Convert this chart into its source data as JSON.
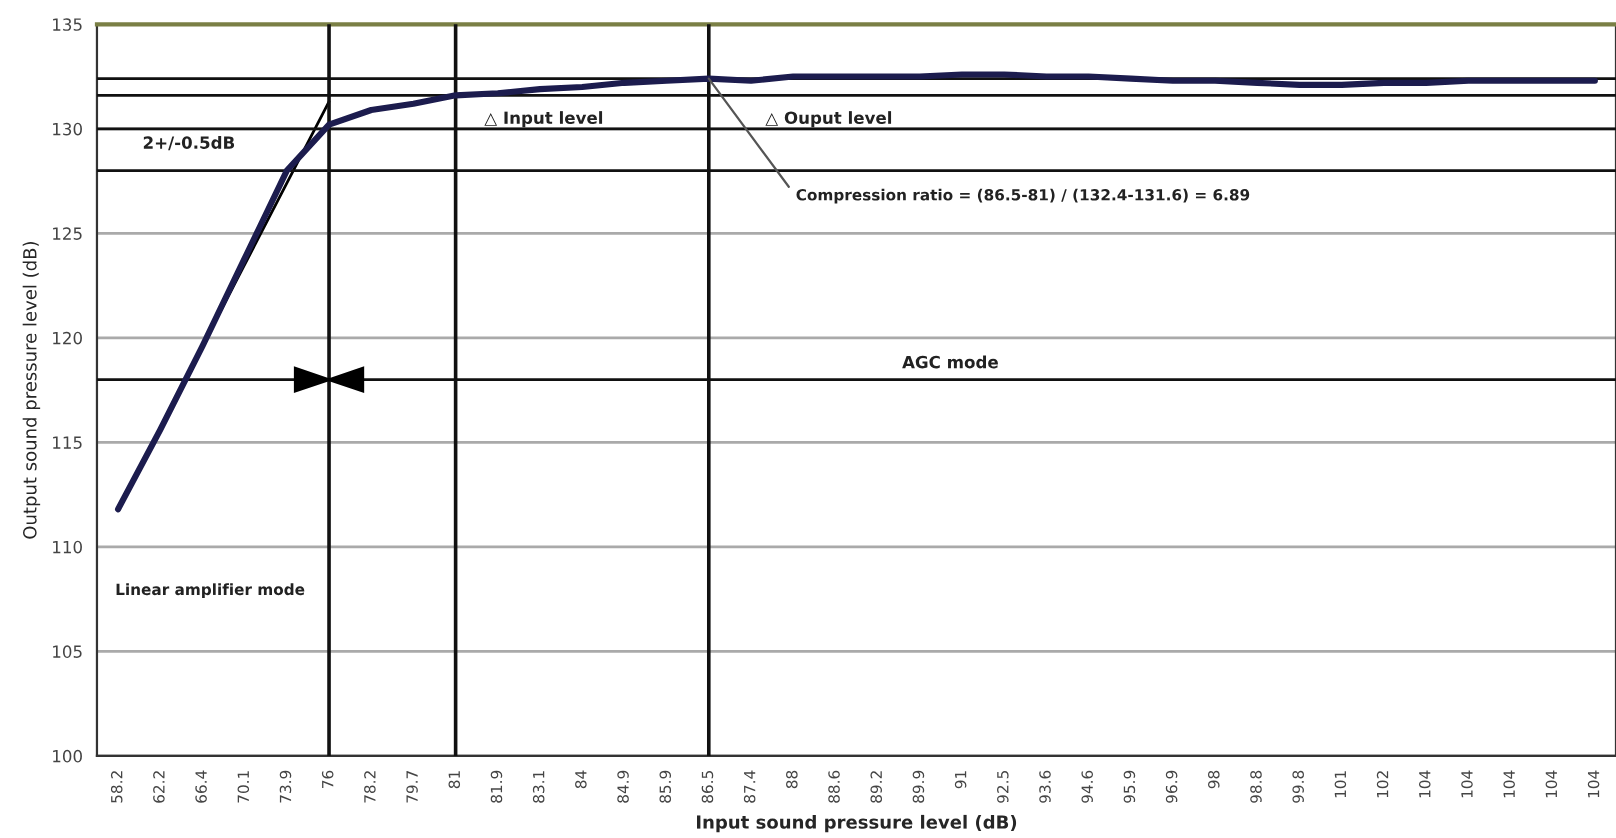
{
  "chart_data": {
    "type": "line",
    "xlabel": "Input sound pressure level (dB)",
    "ylabel": "Output sound pressure level (dB)",
    "categories": [
      "58.2",
      "62.2",
      "66.4",
      "70.1",
      "73.9",
      "76",
      "78.2",
      "79.7",
      "81",
      "81.9",
      "83.1",
      "84",
      "84.9",
      "85.9",
      "86.5",
      "87.4",
      "88",
      "88.6",
      "89.2",
      "89.9",
      "91",
      "92.5",
      "93.6",
      "94.6",
      "95.9",
      "96.9",
      "98",
      "98.8",
      "99.8",
      "101",
      "102",
      "104",
      "104",
      "104",
      "104",
      "104"
    ],
    "series": [
      {
        "color": "#1c1c4e",
        "values": [
          111.8,
          115.6,
          119.6,
          123.8,
          128.0,
          130.2,
          130.9,
          131.2,
          131.6,
          131.7,
          131.9,
          132.0,
          132.2,
          132.3,
          132.4,
          132.3,
          132.5,
          132.5,
          132.5,
          132.5,
          132.6,
          132.6,
          132.5,
          132.5,
          132.4,
          132.3,
          132.3,
          132.2,
          132.1,
          132.1,
          132.2,
          132.2,
          132.3,
          132.3,
          132.3,
          132.3
        ]
      },
      {
        "color": "#000000",
        "values": [
          null,
          115.7,
          119.6,
          123.5,
          127.4,
          131.3,
          null,
          null,
          null,
          null,
          null,
          null,
          null,
          null,
          null,
          null,
          null,
          null,
          null,
          null,
          null,
          null,
          null,
          null,
          null,
          null,
          null,
          null,
          null,
          null,
          null,
          null,
          null,
          null,
          null,
          null
        ]
      }
    ],
    "ylim": [
      100,
      135
    ],
    "yticks": [
      100,
      105,
      110,
      115,
      120,
      125,
      130,
      135
    ],
    "grid": "y",
    "legend": false,
    "marker": "none",
    "line_style": "solid",
    "ref_lines": [
      {
        "axis": "x",
        "value": "76"
      },
      {
        "axis": "x",
        "value": "81"
      },
      {
        "axis": "x",
        "value": "86.5"
      },
      {
        "axis": "y",
        "value": 132.4
      },
      {
        "axis": "y",
        "value": 131.6
      },
      {
        "axis": "y",
        "value": 130
      },
      {
        "axis": "y",
        "value": 128
      },
      {
        "axis": "y",
        "value": 118
      }
    ],
    "annotations": [
      "2+/-0.5dB",
      "△ Input level",
      "△ Ouput level",
      {
        "text": "Compression ratio = (86.5-81) / (132.4-131.6) = 6.89",
        "x": "86.5",
        "y": 132.4
      },
      "AGC mode",
      "Linear amplifier mode"
    ]
  }
}
